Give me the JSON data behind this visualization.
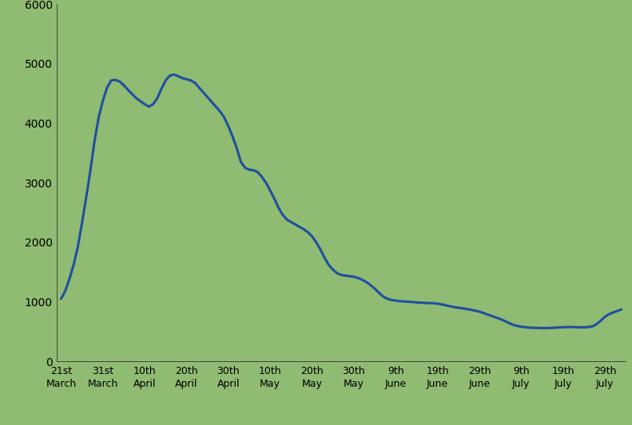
{
  "background_color": "#8fbb72",
  "line_color": "#1f4fa0",
  "line_width": 2.2,
  "ylim": [
    0,
    6000
  ],
  "yticks": [
    0,
    1000,
    2000,
    3000,
    4000,
    5000,
    6000
  ],
  "x_labels": [
    [
      "21st\nMarch",
      0
    ],
    [
      "31st\nMarch",
      10
    ],
    [
      "10th\nApril",
      20
    ],
    [
      "20th\nApril",
      30
    ],
    [
      "30th\nApril",
      40
    ],
    [
      "10th\nMay",
      50
    ],
    [
      "20th\nMay",
      60
    ],
    [
      "30th\nMay",
      70
    ],
    [
      "9th\nJune",
      80
    ],
    [
      "19th\nJune",
      90
    ],
    [
      "29th\nJune",
      100
    ],
    [
      "9th\nJuly",
      110
    ],
    [
      "19th\nJuly",
      120
    ],
    [
      "29th\nJuly",
      130
    ]
  ],
  "data_x": [
    0,
    1,
    2,
    3,
    4,
    5,
    6,
    7,
    8,
    9,
    10,
    11,
    12,
    13,
    14,
    15,
    16,
    17,
    18,
    19,
    20,
    21,
    22,
    23,
    24,
    25,
    26,
    27,
    28,
    29,
    30,
    31,
    32,
    33,
    34,
    35,
    36,
    37,
    38,
    39,
    40,
    41,
    42,
    43,
    44,
    45,
    46,
    47,
    48,
    49,
    50,
    51,
    52,
    53,
    54,
    55,
    56,
    57,
    58,
    59,
    60,
    61,
    62,
    63,
    64,
    65,
    66,
    67,
    68,
    69,
    70,
    71,
    72,
    73,
    74,
    75,
    76,
    77,
    78,
    79,
    80,
    81,
    82,
    83,
    84,
    85,
    86,
    87,
    88,
    89,
    90,
    91,
    92,
    93,
    94,
    95,
    96,
    97,
    98,
    99,
    100,
    101,
    102,
    103,
    104,
    105,
    106,
    107,
    108,
    109,
    110,
    111,
    112,
    113,
    114,
    115,
    116,
    117,
    118,
    119,
    120,
    121,
    122,
    123,
    124,
    125,
    126,
    127,
    128,
    129,
    130,
    131,
    132,
    133,
    134
  ],
  "data_y": [
    1050,
    1180,
    1380,
    1620,
    1920,
    2320,
    2750,
    3200,
    3700,
    4100,
    4380,
    4600,
    4720,
    4730,
    4700,
    4640,
    4560,
    4490,
    4420,
    4370,
    4320,
    4280,
    4320,
    4420,
    4580,
    4720,
    4800,
    4820,
    4790,
    4760,
    4740,
    4720,
    4680,
    4600,
    4520,
    4440,
    4360,
    4280,
    4200,
    4100,
    3950,
    3780,
    3580,
    3350,
    3250,
    3220,
    3210,
    3180,
    3100,
    3000,
    2870,
    2730,
    2580,
    2460,
    2380,
    2340,
    2300,
    2260,
    2220,
    2170,
    2100,
    2000,
    1880,
    1740,
    1620,
    1540,
    1480,
    1450,
    1440,
    1430,
    1420,
    1400,
    1370,
    1330,
    1280,
    1220,
    1150,
    1090,
    1050,
    1030,
    1020,
    1010,
    1005,
    1000,
    995,
    990,
    985,
    980,
    978,
    975,
    968,
    955,
    940,
    925,
    910,
    900,
    890,
    878,
    865,
    850,
    835,
    810,
    785,
    760,
    735,
    710,
    680,
    645,
    615,
    595,
    580,
    572,
    565,
    562,
    560,
    558,
    558,
    560,
    563,
    568,
    572,
    575,
    575,
    572,
    570,
    570,
    575,
    585,
    620,
    680,
    745,
    790,
    820,
    845,
    870
  ],
  "xlim": [
    -1,
    135
  ],
  "figsize": [
    7.91,
    5.33
  ],
  "dpi": 100
}
